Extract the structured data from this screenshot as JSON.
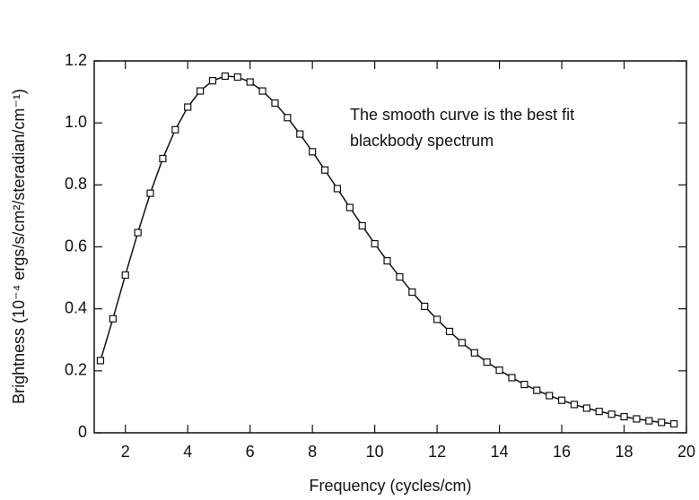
{
  "chart_data": {
    "type": "line",
    "xlabel": "Frequency (cycles/cm)",
    "ylabel": "Brightness (10⁻⁴ ergs/s/cm²/steradian/cm⁻¹)",
    "annotation": [
      "The smooth curve is the best fit",
      "blackbody spectrum"
    ],
    "xlim": [
      1,
      20
    ],
    "ylim": [
      0,
      1.2
    ],
    "xticks": [
      2,
      4,
      6,
      8,
      10,
      12,
      14,
      16,
      18,
      20
    ],
    "yticks": [
      0,
      0.2,
      0.4,
      0.6,
      0.8,
      {
        "value": 1,
        "label": "1.0"
      },
      1.2
    ],
    "color": "#111111",
    "x": [
      1.2,
      1.6,
      2.0,
      2.4,
      2.8,
      3.2,
      3.6,
      4.0,
      4.4,
      4.8,
      5.2,
      5.6,
      6.0,
      6.4,
      6.8,
      7.2,
      7.6,
      8.0,
      8.4,
      8.8,
      9.2,
      9.6,
      10.0,
      10.4,
      10.8,
      11.2,
      11.6,
      12.0,
      12.4,
      12.8,
      13.2,
      13.6,
      14.0,
      14.4,
      14.8,
      15.2,
      15.6,
      16.0,
      16.4,
      16.8,
      17.2,
      17.6,
      18.0,
      18.4,
      18.8,
      19.2,
      19.6
    ],
    "values": [
      0.233,
      0.368,
      0.509,
      0.646,
      0.773,
      0.885,
      0.978,
      1.051,
      1.103,
      1.136,
      1.151,
      1.148,
      1.132,
      1.103,
      1.064,
      1.017,
      0.964,
      0.907,
      0.848,
      0.788,
      0.727,
      0.668,
      0.61,
      0.555,
      0.503,
      0.454,
      0.408,
      0.366,
      0.327,
      0.291,
      0.258,
      0.228,
      0.202,
      0.178,
      0.156,
      0.137,
      0.12,
      0.105,
      0.0913,
      0.0795,
      0.069,
      0.0599,
      0.0519,
      0.0449,
      0.0387,
      0.0334,
      0.0288
    ]
  }
}
